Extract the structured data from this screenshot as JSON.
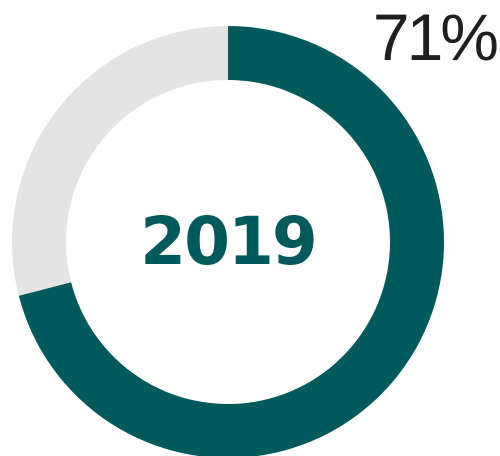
{
  "chart_data": {
    "type": "pie",
    "donut": true,
    "title": "",
    "center_label": "2019",
    "value_label": "71%",
    "slices": [
      {
        "value": 71,
        "color": "#005A5B"
      },
      {
        "value": 29,
        "color": "#E3E4E3"
      }
    ],
    "start_angle_deg": 0,
    "direction": "clockwise"
  }
}
